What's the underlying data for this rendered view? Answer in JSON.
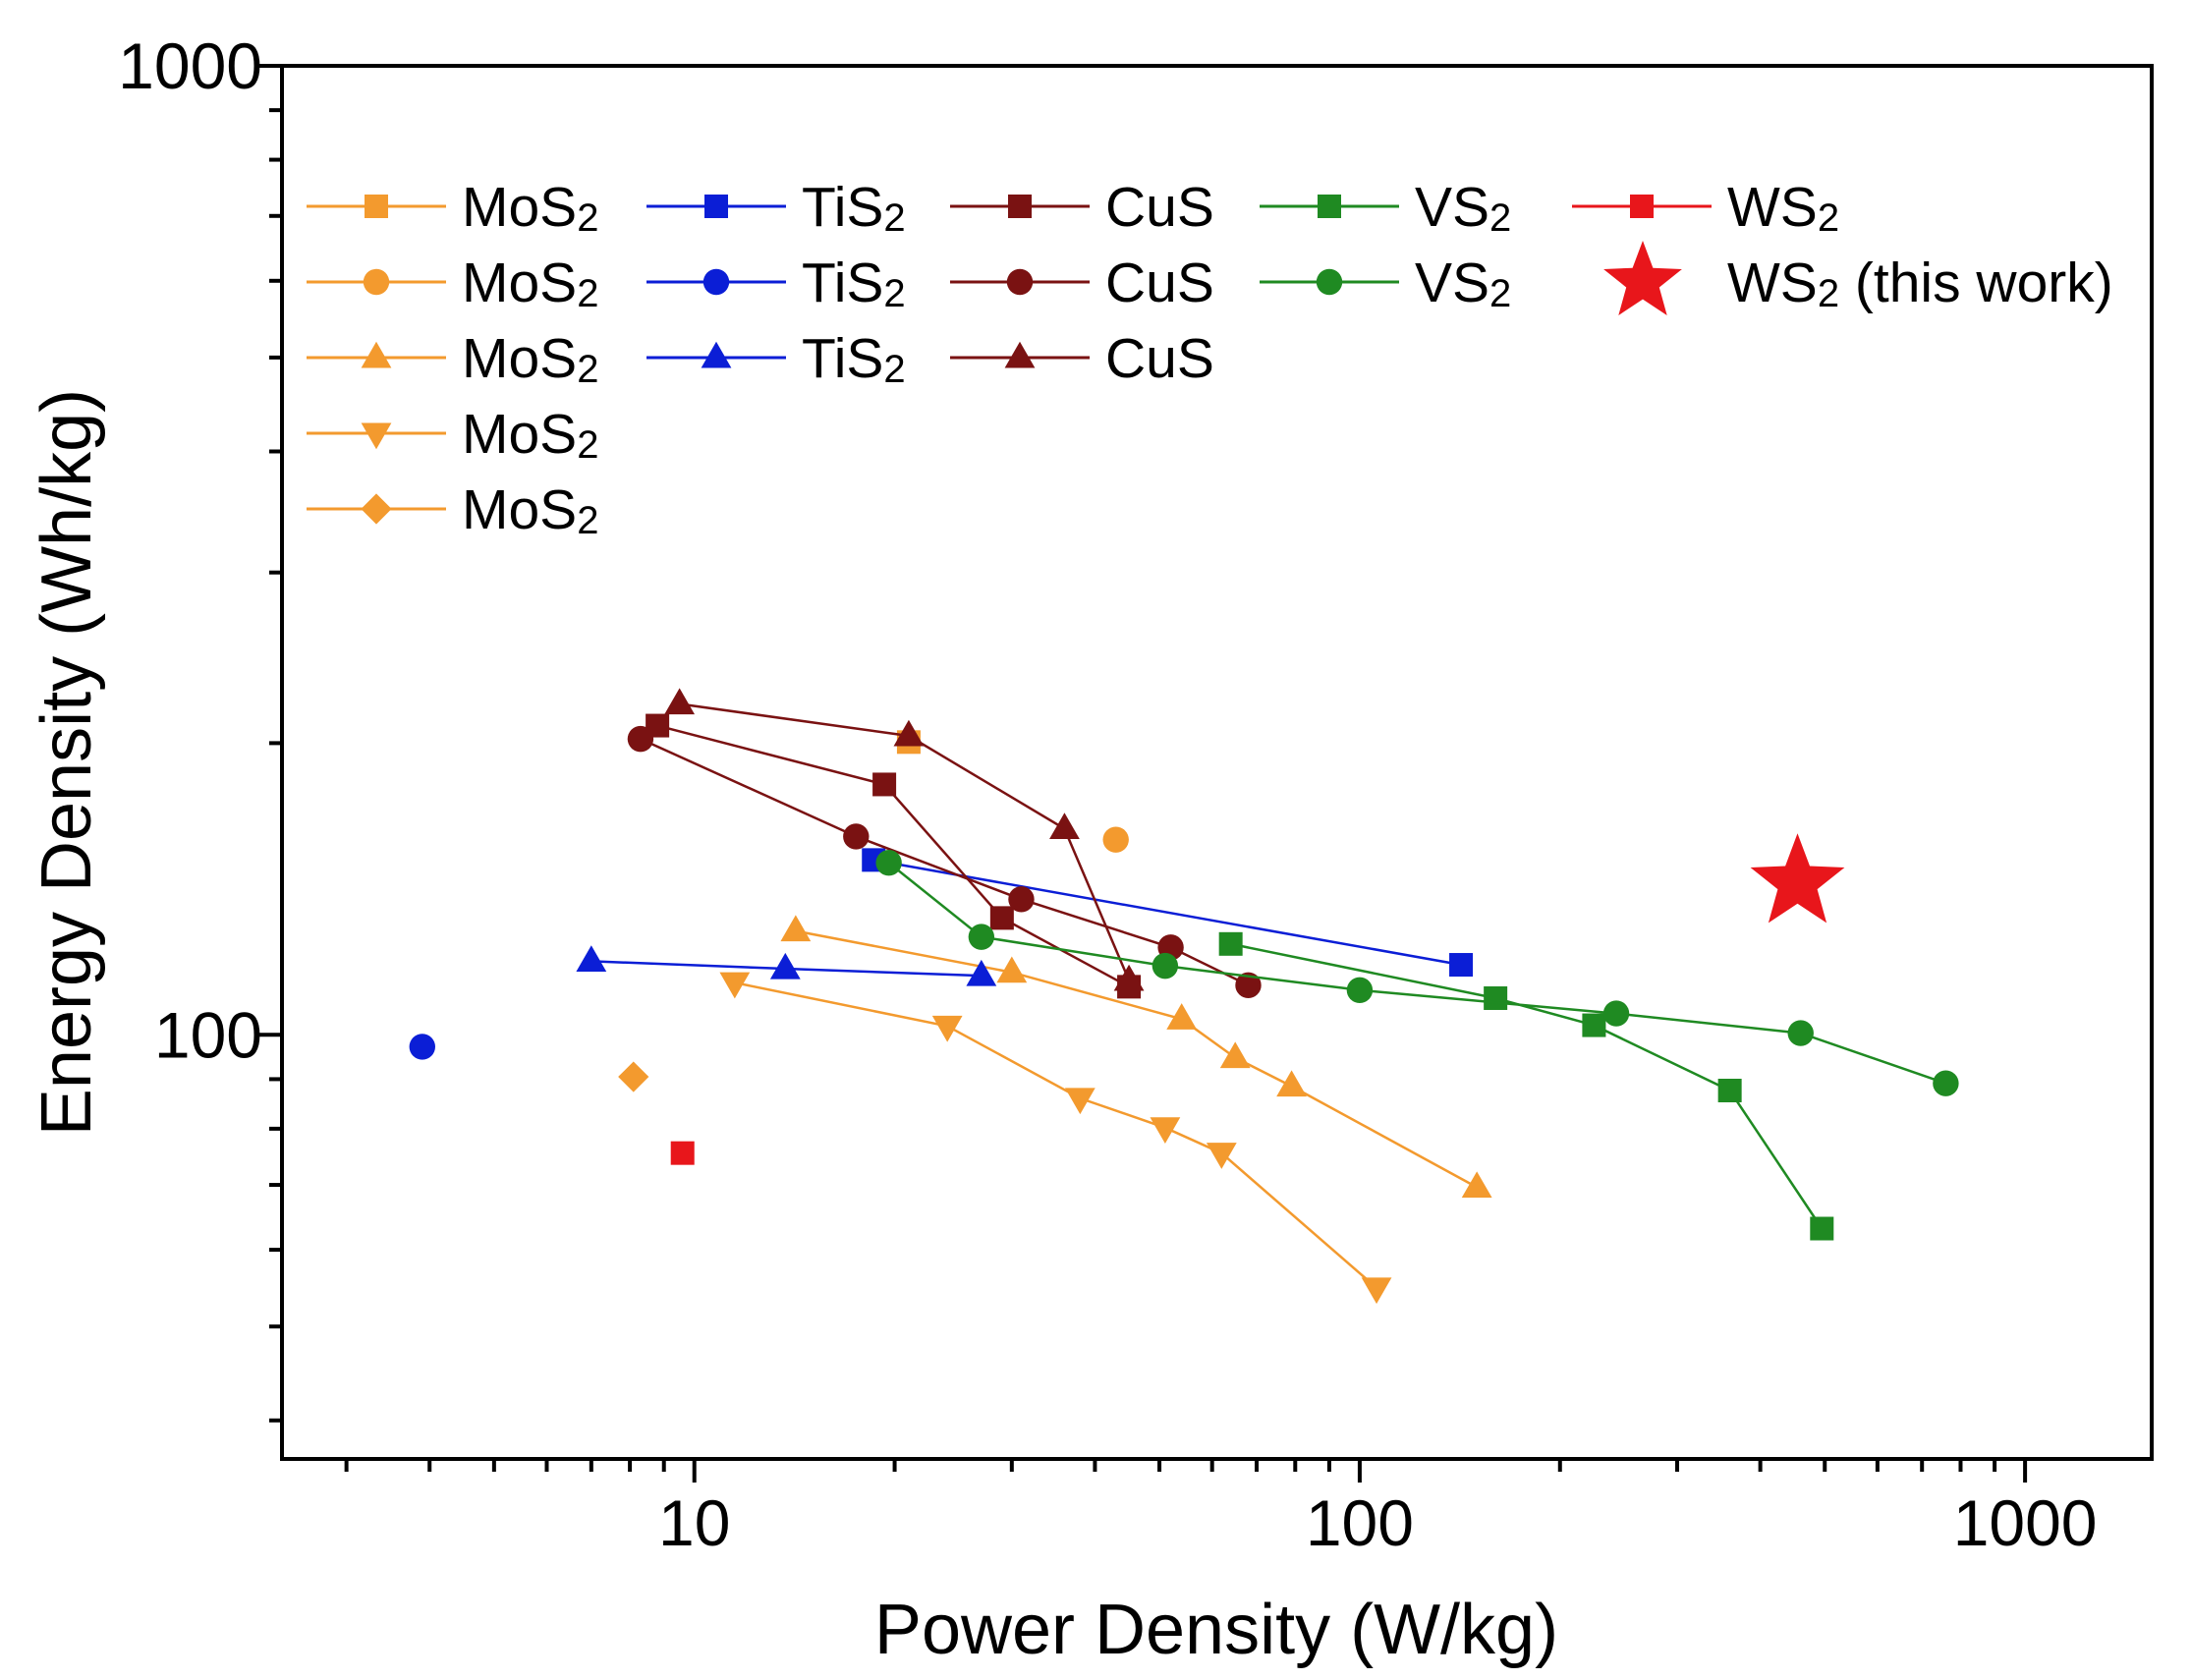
{
  "chart_data": {
    "type": "scatter",
    "title": "",
    "xlabel": "Power Density (W/kg)",
    "ylabel": "Energy Density (Wh/kg)",
    "xscale": "log",
    "yscale": "log",
    "xlim": [
      2.4,
      1550
    ],
    "ylim": [
      36.5,
      1000
    ],
    "xticks": [
      {
        "value": 10,
        "label": "10"
      },
      {
        "value": 100,
        "label": "100"
      },
      {
        "value": 1000,
        "label": "1000"
      }
    ],
    "yticks": [
      {
        "value": 100,
        "label": "100"
      },
      {
        "value": 1000,
        "label": "1000"
      }
    ],
    "legend_position": "top-left",
    "series": [
      {
        "name": "MoS",
        "sub": "2",
        "color": "#f39a2e",
        "marker": "square",
        "line": false,
        "points": [
          [
            21,
            200.5
          ]
        ]
      },
      {
        "name": "MoS",
        "sub": "2",
        "color": "#f39a2e",
        "marker": "circle",
        "line": false,
        "points": [
          [
            43,
            159
          ]
        ]
      },
      {
        "name": "MoS",
        "sub": "2",
        "color": "#f39a2e",
        "marker": "triangle-up",
        "line": true,
        "points": [
          [
            14.2,
            128
          ],
          [
            30,
            116
          ],
          [
            54,
            103.8
          ],
          [
            65,
            94.7
          ],
          [
            79,
            88.5
          ],
          [
            150,
            69.6
          ]
        ]
      },
      {
        "name": "MoS",
        "sub": "2",
        "color": "#f39a2e",
        "marker": "triangle-down",
        "line": true,
        "points": [
          [
            11.5,
            113.2
          ],
          [
            24,
            102.1
          ],
          [
            38,
            86
          ],
          [
            51,
            80.2
          ],
          [
            62,
            75.5
          ],
          [
            106,
            54.8
          ]
        ]
      },
      {
        "name": "MoS",
        "sub": "2",
        "color": "#f39a2e",
        "marker": "diamond",
        "line": false,
        "points": [
          [
            8.1,
            90.5
          ]
        ]
      },
      {
        "name": "TiS",
        "sub": "2",
        "color": "#0b1ed6",
        "marker": "square",
        "line": true,
        "points": [
          [
            18.6,
            151.5
          ],
          [
            142,
            118.1
          ]
        ]
      },
      {
        "name": "TiS",
        "sub": "2",
        "color": "#0b1ed6",
        "marker": "circle",
        "line": false,
        "points": [
          [
            3.9,
            97.2
          ]
        ]
      },
      {
        "name": "TiS",
        "sub": "2",
        "color": "#0b1ed6",
        "marker": "triangle-up",
        "line": true,
        "points": [
          [
            7,
            119.1
          ],
          [
            13.7,
            117
          ],
          [
            27,
            115.1
          ]
        ]
      },
      {
        "name": "CuS",
        "sub": "",
        "color": "#7a1212",
        "marker": "square",
        "line": true,
        "points": [
          [
            8.8,
            208.5
          ],
          [
            19.3,
            181.3
          ],
          [
            29,
            132
          ],
          [
            45,
            112.1
          ]
        ]
      },
      {
        "name": "CuS",
        "sub": "",
        "color": "#7a1212",
        "marker": "circle",
        "line": true,
        "points": [
          [
            8.3,
            202
          ],
          [
            17.5,
            160.2
          ],
          [
            31,
            138
          ],
          [
            52,
            123.1
          ],
          [
            68,
            112.5
          ]
        ]
      },
      {
        "name": "CuS",
        "sub": "",
        "color": "#7a1212",
        "marker": "triangle-up",
        "line": true,
        "points": [
          [
            9.5,
            219.5
          ],
          [
            21,
            203.5
          ],
          [
            36,
            163.2
          ],
          [
            45,
            113.8
          ]
        ]
      },
      {
        "name": "VS",
        "sub": "2",
        "color": "#1f8a22",
        "marker": "square",
        "line": true,
        "points": [
          [
            64,
            124.1
          ],
          [
            160,
            109.1
          ],
          [
            225,
            102.3
          ],
          [
            360,
            87.6
          ],
          [
            495,
            63.1
          ]
        ]
      },
      {
        "name": "VS",
        "sub": "2",
        "color": "#1f8a22",
        "marker": "circle",
        "line": true,
        "points": [
          [
            19.6,
            150.5
          ],
          [
            27,
            126.2
          ],
          [
            51,
            117.8
          ],
          [
            100,
            111.2
          ],
          [
            243,
            105.2
          ],
          [
            460,
            100.4
          ],
          [
            760,
            89.1
          ]
        ]
      },
      {
        "name": "WS",
        "sub": "2",
        "color": "#e8161b",
        "marker": "square",
        "line": false,
        "points": [
          [
            9.6,
            75.5
          ]
        ]
      },
      {
        "name": "WS",
        "sub": "2 (this work)",
        "color": "#e8161b",
        "marker": "star",
        "line": false,
        "points": [
          [
            455,
            143.5
          ]
        ]
      }
    ]
  }
}
